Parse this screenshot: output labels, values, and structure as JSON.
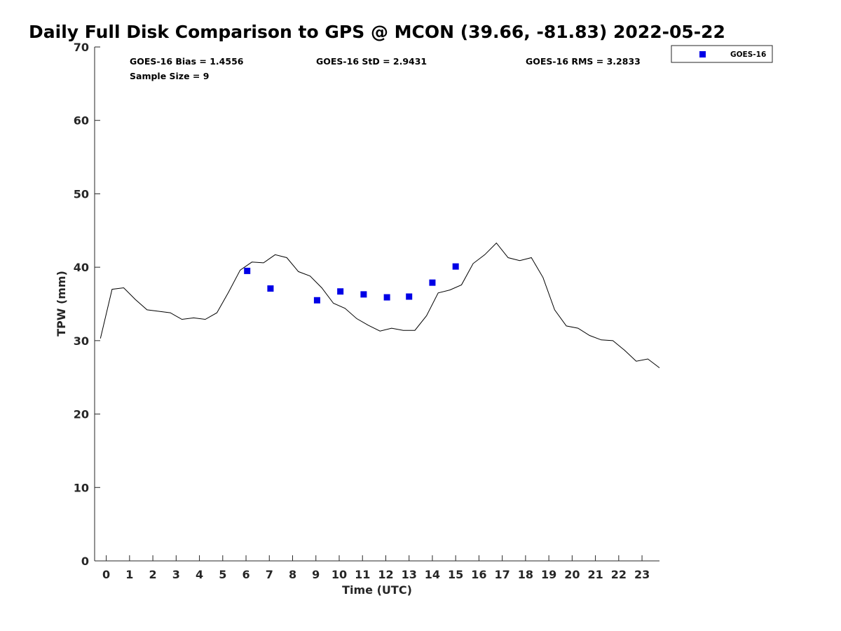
{
  "colors": {
    "goes16": "#0000e6",
    "gps_line": "#000000",
    "axis": "#262626"
  },
  "chart_data": {
    "type": "line",
    "title": "Daily Full Disk Comparison to GPS @ MCON (39.66, -81.83) 2022-05-22",
    "xlabel": "Time (UTC)",
    "ylabel": "TPW (mm)",
    "xlim": [
      -0.5,
      23.75
    ],
    "ylim": [
      0,
      70
    ],
    "xticks": [
      "0",
      "1",
      "2",
      "3",
      "4",
      "5",
      "6",
      "7",
      "8",
      "9",
      "10",
      "11",
      "12",
      "13",
      "14",
      "15",
      "16",
      "17",
      "18",
      "19",
      "20",
      "21",
      "22",
      "23"
    ],
    "yticks": [
      "0",
      "10",
      "20",
      "30",
      "40",
      "50",
      "60",
      "70"
    ],
    "grid": false,
    "legend_position": "top-right",
    "stats": {
      "bias": "GOES-16 Bias = 1.4556",
      "std": "GOES-16 StD = 2.9431",
      "rms": "GOES-16 RMS = 3.2833",
      "sample": "Sample Size = 9"
    },
    "series": [
      {
        "type": "line",
        "x": [
          -0.25,
          0.25,
          0.75,
          1.25,
          1.75,
          2.25,
          2.75,
          3.25,
          3.75,
          4.25,
          4.75,
          5.25,
          5.75,
          6.25,
          6.75,
          7.25,
          7.75,
          8.25,
          8.75,
          9.25,
          9.75,
          10.25,
          10.75,
          11.25,
          11.75,
          12.25,
          12.75,
          13.25,
          13.75,
          14.25,
          14.75,
          15.25,
          15.75,
          16.25,
          16.75,
          17.25,
          17.75,
          18.25,
          18.75,
          19.25,
          19.75,
          20.25,
          20.75,
          21.25,
          21.75,
          22.25,
          22.75,
          23.25,
          23.75
        ],
        "values": [
          30.3,
          37.0,
          37.2,
          35.6,
          34.2,
          34.0,
          33.8,
          32.9,
          33.1,
          32.9,
          33.8,
          36.6,
          39.6,
          40.7,
          40.6,
          41.7,
          41.3,
          39.4,
          38.8,
          37.2,
          35.1,
          34.4,
          33.0,
          32.1,
          31.3,
          31.7,
          31.4,
          31.4,
          33.4,
          36.5,
          36.9,
          37.6,
          40.5,
          41.7,
          43.3,
          41.3,
          40.9,
          41.3,
          38.6,
          34.2,
          32.0,
          31.7,
          30.7,
          30.1,
          30.0,
          28.7,
          27.2,
          27.5,
          26.3
        ]
      },
      {
        "type": "scatter",
        "name": "GOES-16",
        "x": [
          6.05,
          7.05,
          9.05,
          10.05,
          11.05,
          12.05,
          13.0,
          14.0,
          15.0
        ],
        "values": [
          39.5,
          37.1,
          35.5,
          36.7,
          36.3,
          35.9,
          36.0,
          37.9,
          40.1
        ]
      }
    ]
  }
}
